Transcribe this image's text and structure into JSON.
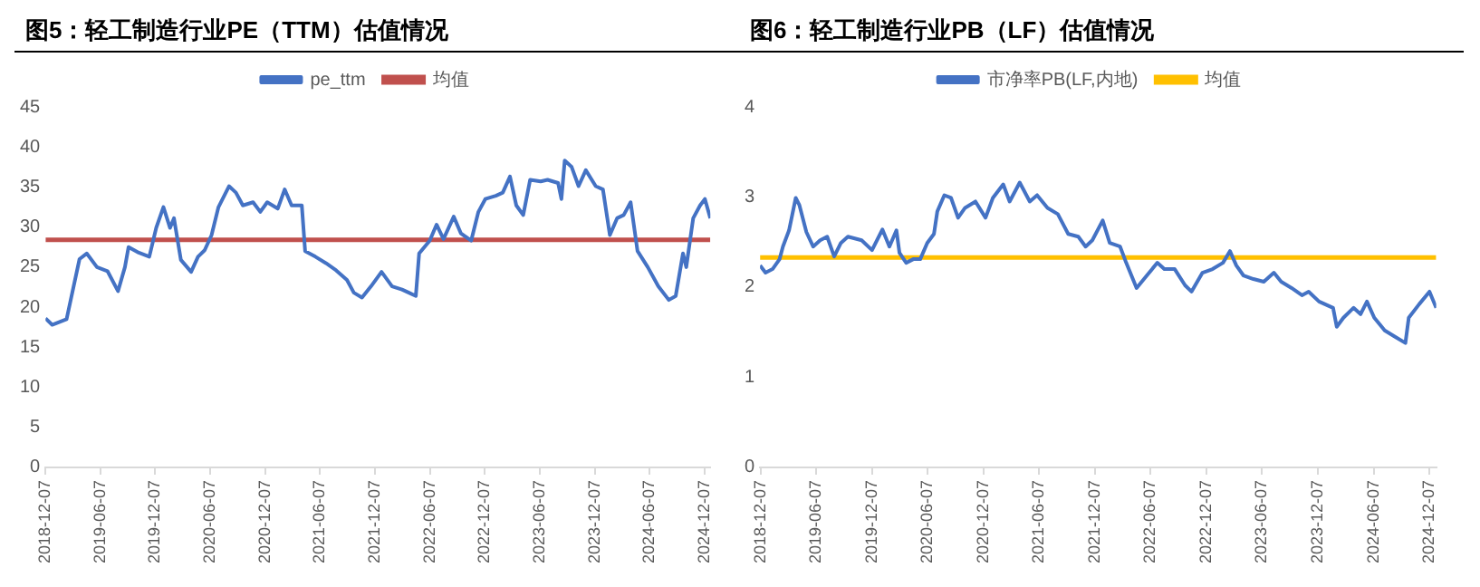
{
  "chart_data": [
    {
      "type": "line",
      "title": "图5：轻工制造行业PE（TTM）估值情况",
      "legend": "top",
      "marker": "none",
      "line_style": "solid",
      "x": [
        "2018-12-07",
        "2018-12-29",
        "2019-02-15",
        "2019-03-30",
        "2019-04-23",
        "2019-05-27",
        "2019-07-01",
        "2019-08-05",
        "2019-08-28",
        "2019-09-09",
        "2019-10-13",
        "2019-11-17",
        "2019-12-10",
        "2020-01-03",
        "2020-01-25",
        "2020-02-07",
        "2020-03-01",
        "2020-04-04",
        "2020-04-27",
        "2020-05-19",
        "2020-06-11",
        "2020-07-04",
        "2020-08-08",
        "2020-08-31",
        "2020-09-23",
        "2020-10-27",
        "2020-11-20",
        "2020-12-13",
        "2021-01-17",
        "2021-02-09",
        "2021-03-04",
        "2021-04-07",
        "2021-04-18",
        "2021-05-22",
        "2021-06-26",
        "2021-07-30",
        "2021-09-04",
        "2021-09-27",
        "2021-10-24",
        "2021-11-23",
        "2021-12-28",
        "2022-02-01",
        "2022-03-06",
        "2022-03-29",
        "2022-04-21",
        "2022-05-02",
        "2022-06-06",
        "2022-06-29",
        "2022-07-22",
        "2022-08-25",
        "2022-09-18",
        "2022-10-22",
        "2022-11-15",
        "2022-12-08",
        "2023-01-12",
        "2023-02-04",
        "2023-02-28",
        "2023-03-21",
        "2023-04-13",
        "2023-05-06",
        "2023-06-10",
        "2023-07-03",
        "2023-08-07",
        "2023-08-18",
        "2023-08-29",
        "2023-09-21",
        "2023-10-14",
        "2023-11-07",
        "2023-12-10",
        "2024-01-03",
        "2024-01-26",
        "2024-02-19",
        "2024-03-12",
        "2024-04-04",
        "2024-04-27",
        "2024-05-31",
        "2024-07-05",
        "2024-08-09",
        "2024-09-01",
        "2024-09-25",
        "2024-10-06",
        "2024-10-29",
        "2024-11-21",
        "2024-12-07",
        "2024-12-25"
      ],
      "series": [
        {
          "name": "pe_ttm",
          "color": "#4472c4",
          "values": [
            18.6,
            17.8,
            18.5,
            26,
            26.7,
            25,
            24.5,
            22,
            25,
            27.5,
            26.8,
            26.3,
            29.9,
            32.5,
            29.9,
            31.1,
            25.9,
            24.4,
            26.3,
            27.1,
            29,
            32.5,
            35.1,
            34.3,
            32.7,
            33.1,
            31.9,
            33.1,
            32.3,
            34.7,
            32.7,
            32.7,
            27,
            26.3,
            25.5,
            24.6,
            23.4,
            21.8,
            21.2,
            22.6,
            24.4,
            22.6,
            22.2,
            21.8,
            21.4,
            26.7,
            28.3,
            30.3,
            28.5,
            31.3,
            29.2,
            28.3,
            31.9,
            33.5,
            33.9,
            34.3,
            36.3,
            32.7,
            31.5,
            35.9,
            35.7,
            35.9,
            35.5,
            33.5,
            38.3,
            37.5,
            35.1,
            37.1,
            35.1,
            34.7,
            29,
            31.1,
            31.5,
            33.1,
            27,
            25,
            22.6,
            20.9,
            21.4,
            26.7,
            25,
            31.1,
            32.7,
            33.5,
            31.1
          ]
        }
      ],
      "ref_lines": [
        {
          "axis": "y",
          "value": 28.4,
          "label": "均值",
          "color": "#c0504d"
        }
      ],
      "xlim": [
        "2018-12-07",
        "2024-12-25"
      ],
      "xticks": [
        "2018-12-07",
        "2019-06-07",
        "2019-12-07",
        "2020-06-07",
        "2020-12-07",
        "2021-06-07",
        "2021-12-07",
        "2022-06-07",
        "2022-12-07",
        "2023-06-07",
        "2023-12-07",
        "2024-06-07",
        "2024-12-07"
      ],
      "ylim": [
        0,
        45
      ],
      "yticks": [
        0,
        5,
        10,
        15,
        20,
        25,
        30,
        35,
        40,
        45
      ]
    },
    {
      "type": "line",
      "title": "图6：轻工制造行业PB（LF）估值情况",
      "legend": "top",
      "marker": "none",
      "line_style": "solid",
      "x": [
        "2018-12-05",
        "2018-12-23",
        "2019-01-15",
        "2019-02-07",
        "2019-02-18",
        "2019-03-10",
        "2019-04-01",
        "2019-04-13",
        "2019-05-06",
        "2019-05-28",
        "2019-06-20",
        "2019-07-13",
        "2019-08-05",
        "2019-08-27",
        "2019-09-19",
        "2019-11-03",
        "2019-12-07",
        "2020-01-10",
        "2020-02-02",
        "2020-02-25",
        "2020-03-06",
        "2020-03-28",
        "2020-04-20",
        "2020-05-13",
        "2020-06-05",
        "2020-06-27",
        "2020-07-08",
        "2020-07-31",
        "2020-08-22",
        "2020-09-14",
        "2020-10-07",
        "2020-11-10",
        "2020-12-13",
        "2021-01-06",
        "2021-02-09",
        "2021-03-02",
        "2021-04-04",
        "2021-05-07",
        "2021-05-31",
        "2021-07-04",
        "2021-08-07",
        "2021-09-10",
        "2021-10-13",
        "2021-11-06",
        "2021-11-28",
        "2022-01-01",
        "2022-01-24",
        "2022-02-27",
        "2022-03-19",
        "2022-04-22",
        "2022-05-26",
        "2022-06-29",
        "2022-07-22",
        "2022-08-25",
        "2022-09-28",
        "2022-10-19",
        "2022-11-24",
        "2022-12-27",
        "2023-01-30",
        "2023-02-22",
        "2023-03-15",
        "2023-04-07",
        "2023-05-10",
        "2023-06-13",
        "2023-07-16",
        "2023-08-09",
        "2023-09-12",
        "2023-10-16",
        "2023-11-07",
        "2023-12-11",
        "2024-01-26",
        "2024-02-07",
        "2024-02-29",
        "2024-04-02",
        "2024-04-25",
        "2024-05-16",
        "2024-06-09",
        "2024-07-13",
        "2024-08-16",
        "2024-09-19",
        "2024-09-30",
        "2024-11-03",
        "2024-12-07",
        "2024-12-29"
      ],
      "series": [
        {
          "name": "市净率PB(LF,内地)",
          "color": "#4472c4",
          "values": [
            2.24,
            2.16,
            2.2,
            2.31,
            2.45,
            2.63,
            2.99,
            2.91,
            2.61,
            2.45,
            2.52,
            2.56,
            2.34,
            2.49,
            2.56,
            2.52,
            2.41,
            2.64,
            2.45,
            2.63,
            2.38,
            2.27,
            2.31,
            2.31,
            2.49,
            2.59,
            2.84,
            3.02,
            2.99,
            2.77,
            2.88,
            2.95,
            2.77,
            2.99,
            3.14,
            2.95,
            3.16,
            2.95,
            3.02,
            2.88,
            2.81,
            2.59,
            2.56,
            2.45,
            2.52,
            2.74,
            2.49,
            2.45,
            2.27,
            1.99,
            2.13,
            2.27,
            2.2,
            2.2,
            2.02,
            1.95,
            2.16,
            2.2,
            2.27,
            2.4,
            2.24,
            2.13,
            2.09,
            2.06,
            2.16,
            2.06,
            1.99,
            1.91,
            1.95,
            1.84,
            1.77,
            1.56,
            1.66,
            1.77,
            1.7,
            1.84,
            1.66,
            1.52,
            1.45,
            1.38,
            1.66,
            1.81,
            1.95,
            1.77
          ]
        }
      ],
      "ref_lines": [
        {
          "axis": "y",
          "value": 2.33,
          "label": "均值",
          "color": "#ffc000"
        }
      ],
      "xlim": [
        "2018-12-05",
        "2024-12-29"
      ],
      "xticks": [
        "2018-12-07",
        "2019-06-07",
        "2019-12-07",
        "2020-06-07",
        "2020-12-07",
        "2021-06-07",
        "2021-12-07",
        "2022-06-07",
        "2022-12-07",
        "2023-06-07",
        "2023-12-07",
        "2024-06-07",
        "2024-12-07"
      ],
      "ylim": [
        0,
        4
      ],
      "yticks": [
        0,
        1,
        2,
        3,
        4
      ]
    }
  ]
}
